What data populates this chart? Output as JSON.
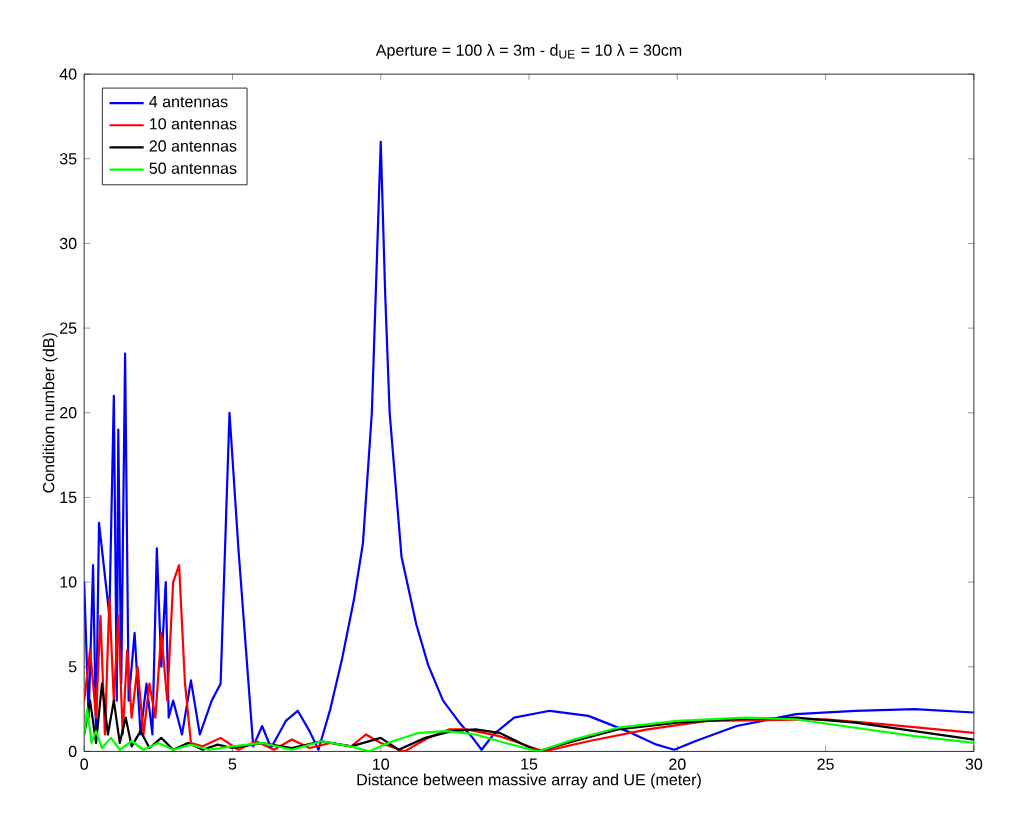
{
  "chart_data": {
    "type": "line",
    "title": "Aperture = 100 λ = 3m - d$_{UE}$ = 10 λ = 30cm",
    "xlabel": "Distance between massive array and UE (meter)",
    "ylabel": "Condition number (dB)",
    "xlim": [
      0,
      30
    ],
    "ylim": [
      0,
      40
    ],
    "xticks": [
      0,
      5,
      10,
      15,
      20,
      25,
      30
    ],
    "yticks": [
      0,
      5,
      10,
      15,
      20,
      25,
      30,
      35,
      40
    ],
    "grid": false,
    "legend": "top left",
    "marker": "none",
    "line_style": "solid",
    "series": [
      {
        "name": "4 antennas",
        "color": "#0000ff",
        "x": [
          0,
          0.15,
          0.3,
          0.4,
          0.5,
          0.7,
          0.85,
          1.0,
          1.1,
          1.15,
          1.25,
          1.38,
          1.5,
          1.7,
          1.9,
          2.1,
          2.3,
          2.45,
          2.6,
          2.75,
          2.85,
          3.0,
          3.3,
          3.6,
          3.9,
          4.3,
          4.6,
          4.9,
          5.2,
          5.7,
          6.0,
          6.3,
          6.8,
          7.2,
          7.6,
          7.9,
          8.3,
          8.7,
          9.1,
          9.4,
          9.7,
          9.85,
          10.0,
          10.15,
          10.3,
          10.7,
          11.2,
          11.6,
          12.1,
          12.7,
          13.1,
          13.4,
          13.8,
          14.5,
          15.7,
          17.0,
          18.3,
          19.3,
          19.9,
          20.6,
          22.0,
          24.0,
          26.0,
          28.0,
          30.0
        ],
        "values": [
          10,
          2,
          11,
          1,
          13.5,
          null,
          8,
          21,
          3,
          19,
          4,
          23.5,
          3,
          7,
          1,
          4,
          1,
          12,
          5,
          10,
          2,
          3,
          1,
          4.2,
          1,
          3,
          4,
          20,
          12,
          0.3,
          1.5,
          0.2,
          1.8,
          2.4,
          1.2,
          0.1,
          2.5,
          5.5,
          9,
          12.3,
          20,
          28,
          36,
          27,
          20,
          11.5,
          7.5,
          5.1,
          3,
          1.6,
          0.8,
          0.1,
          1.0,
          2.0,
          2.4,
          2.1,
          1.2,
          0.4,
          0.1,
          0.6,
          1.5,
          2.2,
          2.4,
          2.5,
          2.3
        ]
      },
      {
        "name": "10 antennas",
        "color": "#ff0000",
        "x": [
          0,
          0.2,
          0.4,
          0.55,
          0.7,
          0.85,
          1.0,
          1.15,
          1.3,
          1.45,
          1.6,
          1.8,
          2.0,
          2.2,
          2.4,
          2.6,
          2.8,
          3.0,
          3.2,
          3.4,
          3.6,
          4.0,
          4.6,
          5.2,
          5.8,
          6.4,
          7.0,
          7.6,
          8.3,
          9.0,
          9.5,
          10.0,
          10.8,
          11.6,
          12.3,
          12.9,
          14.0,
          15.5,
          17.0,
          19.0,
          21.0,
          23.0,
          25.0,
          27.0,
          30.0
        ],
        "values": [
          3,
          6,
          2,
          8,
          1,
          9,
          3,
          8,
          1,
          6,
          2,
          5,
          1,
          4,
          2,
          7,
          3,
          10,
          11,
          4,
          0.5,
          0.3,
          0.8,
          0.1,
          0.6,
          0.1,
          0.7,
          0.2,
          0.5,
          0.3,
          1.0,
          0.5,
          0,
          0.8,
          1.3,
          1.3,
          0.9,
          0,
          0.6,
          1.3,
          1.8,
          null,
          1.9,
          1.6,
          1.1
        ]
      },
      {
        "name": "20 antennas",
        "color": "#000000",
        "x": [
          0,
          0.2,
          0.4,
          0.6,
          0.8,
          1.0,
          1.2,
          1.4,
          1.6,
          1.9,
          2.2,
          2.6,
          3.0,
          3.5,
          4.0,
          4.5,
          5.0,
          6.0,
          7.0,
          8.0,
          9.0,
          10.0,
          10.6,
          11.5,
          12.4,
          13.2,
          14.0,
          15.3,
          16.5,
          18.0,
          20.0,
          22.0,
          24.0,
          26.0,
          28.0,
          30.0
        ],
        "values": [
          1,
          3,
          0.5,
          4,
          1,
          3,
          0.5,
          2,
          0.3,
          1.2,
          0.2,
          0.8,
          0.1,
          0.5,
          0.1,
          0.4,
          0.2,
          0.5,
          0.2,
          0.6,
          0.3,
          0.8,
          0.1,
          0.8,
          1.2,
          1.3,
          1.1,
          0,
          0.6,
          1.3,
          1.7,
          1.9,
          2.0,
          1.7,
          1.2,
          0.7
        ]
      },
      {
        "name": "50 antennas",
        "color": "#00ff00",
        "x": [
          0,
          0.1,
          0.25,
          0.4,
          0.6,
          0.9,
          1.2,
          1.6,
          2.0,
          2.5,
          3.0,
          3.6,
          4.2,
          5.0,
          6.0,
          7.0,
          8.0,
          9.0,
          9.6,
          10.4,
          11.3,
          12.2,
          13.2,
          14.2,
          15.3,
          16.5,
          18.0,
          20.0,
          22.3,
          24.0,
          26.0,
          28.0,
          30.0
        ],
        "values": [
          1,
          2.5,
          0.5,
          1.2,
          0.2,
          0.8,
          0.1,
          0.6,
          0.1,
          0.5,
          0.1,
          0.4,
          0.1,
          0.3,
          0.5,
          0.1,
          0.6,
          0.3,
          0,
          0.6,
          1.1,
          1.2,
          1.0,
          0.5,
          0,
          0.7,
          1.4,
          1.8,
          2.0,
          1.9,
          1.4,
          0.9,
          0.5
        ]
      }
    ]
  }
}
